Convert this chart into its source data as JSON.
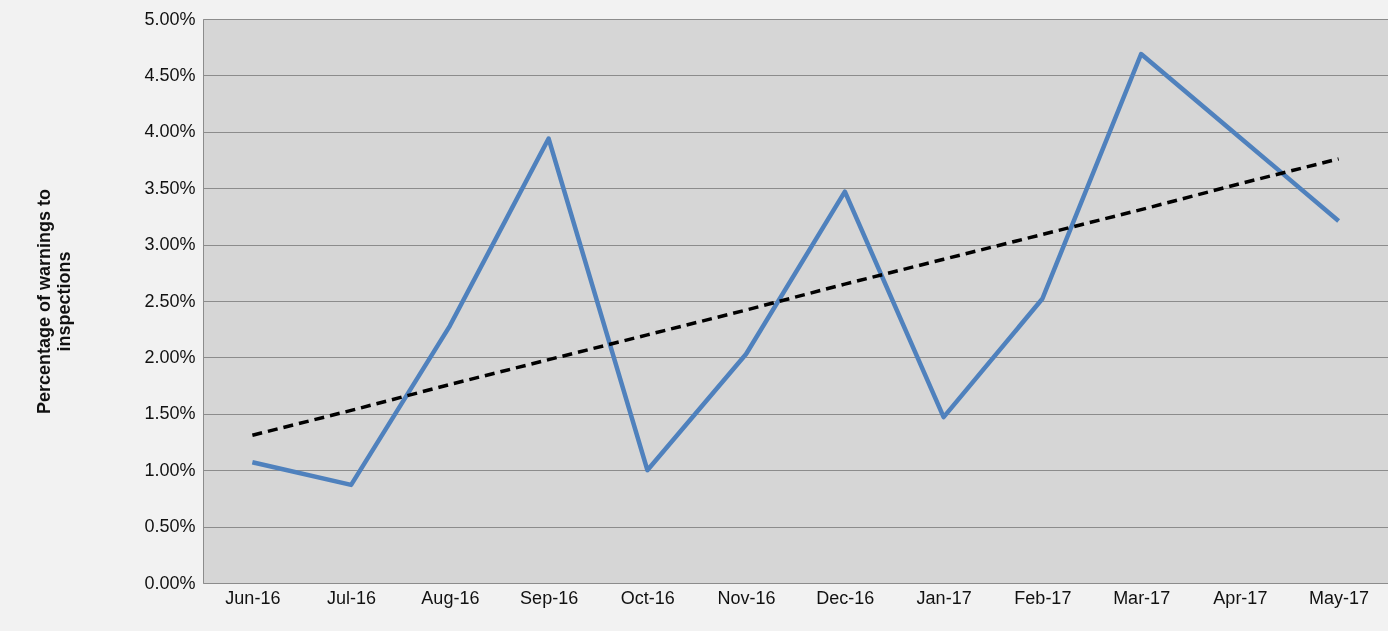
{
  "chart_data": {
    "type": "line",
    "ylabel": "Percentage of warnings to inspections",
    "categories": [
      "Jun-16",
      "Jul-16",
      "Aug-16",
      "Sep-16",
      "Oct-16",
      "Nov-16",
      "Dec-16",
      "Jan-17",
      "Feb-17",
      "Mar-17",
      "Apr-17",
      "May-17"
    ],
    "series": [
      {
        "color": "#4f81bd",
        "line_style": "solid",
        "values": [
          1.07,
          0.87,
          2.28,
          3.94,
          1.0,
          2.03,
          3.47,
          1.47,
          2.52,
          4.69,
          3.95,
          3.21
        ]
      },
      {
        "color": "#000000",
        "line_style": "dashed",
        "values": [
          1.31,
          1.53,
          1.76,
          1.98,
          2.2,
          2.42,
          2.65,
          2.87,
          3.09,
          3.31,
          3.54,
          3.76
        ]
      }
    ],
    "ylim": [
      0,
      5
    ],
    "yticks": [
      {
        "value": 0,
        "label": "0.00%"
      },
      {
        "value": 0.5,
        "label": "0.50%"
      },
      {
        "value": 1,
        "label": "1.00%"
      },
      {
        "value": 1.5,
        "label": "1.50%"
      },
      {
        "value": 2,
        "label": "2.00%"
      },
      {
        "value": 2.5,
        "label": "2.50%"
      },
      {
        "value": 3,
        "label": "3.00%"
      },
      {
        "value": 3.5,
        "label": "3.50%"
      },
      {
        "value": 4,
        "label": "4.00%"
      },
      {
        "value": 4.5,
        "label": "4.50%"
      },
      {
        "value": 5,
        "label": "5.00%"
      }
    ],
    "grid": "y",
    "marker": "none"
  }
}
